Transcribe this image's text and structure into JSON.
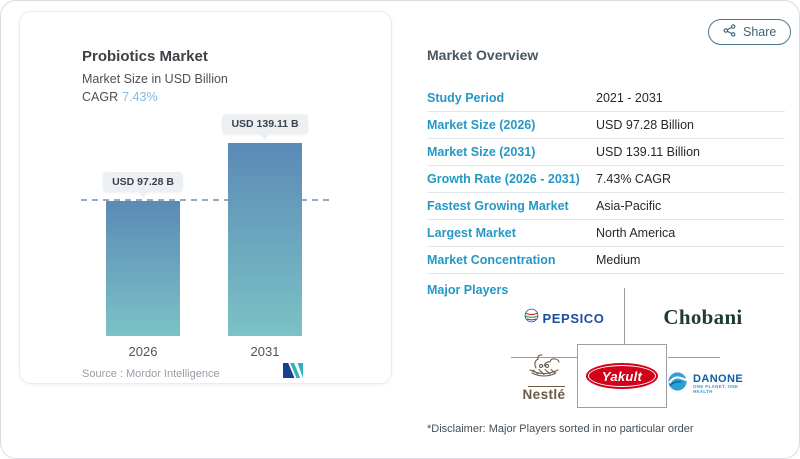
{
  "colors": {
    "accent_blue": "#2598C6",
    "bar_gradient_top": "#5B8AB6",
    "bar_gradient_bottom": "#7CC2C6",
    "share_button": "#39647C",
    "pepsico_blue": "#1D4E9A",
    "chobani_green": "#203D2C",
    "nestle_brown": "#6B5A48",
    "yakult_red": "#D40019",
    "danone_blue": "#0C5EA8",
    "mordor_navy": "#17418E",
    "mordor_teal": "#2FB3B7"
  },
  "chart_card": {
    "title": "Probiotics Market",
    "subtitle": "Market Size in USD Billion",
    "cagr_label": "CAGR",
    "cagr_value": "7.43%",
    "source": "Source :  Mordor Intelligence"
  },
  "chart_data": {
    "type": "bar",
    "title": "Probiotics Market",
    "ylabel": "Market Size in USD Billion",
    "xlabel": "",
    "categories": [
      "2026",
      "2031"
    ],
    "values": [
      97.28,
      139.11
    ],
    "value_labels": [
      "USD 97.28 B",
      "USD 139.11 B"
    ],
    "unit": "USD Billion",
    "reference_line": 97.28,
    "grid": false,
    "legend": false,
    "bar_gradient": [
      "#5B8AB6",
      "#7CC2C6"
    ]
  },
  "overview": {
    "title": "Market Overview",
    "share_label": "Share",
    "rows": [
      {
        "label": "Study Period",
        "value": "2021 - 2031"
      },
      {
        "label": "Market Size (2026)",
        "value": "USD 97.28 Billion"
      },
      {
        "label": "Market Size (2031)",
        "value": "USD 139.11 Billion"
      },
      {
        "label": "Growth Rate (2026 - 2031)",
        "value": "7.43% CAGR"
      },
      {
        "label": "Fastest Growing Market",
        "value": "Asia-Pacific"
      },
      {
        "label": "Largest Market",
        "value": "North America"
      },
      {
        "label": "Market Concentration",
        "value": "Medium"
      }
    ],
    "major_players_label": "Major Players",
    "major_players": [
      {
        "name": "PepsiCo",
        "wordmark": "PEPSICO"
      },
      {
        "name": "Chobani",
        "wordmark": "Chobani"
      },
      {
        "name": "Nestlé",
        "wordmark": "Nestlé"
      },
      {
        "name": "Yakult",
        "wordmark": "Yakult"
      },
      {
        "name": "Danone",
        "wordmark": "DANONE",
        "tagline": "ONE PLANET. ONE HEALTH"
      }
    ],
    "disclaimer": "*Disclaimer: Major Players sorted in no particular order"
  }
}
